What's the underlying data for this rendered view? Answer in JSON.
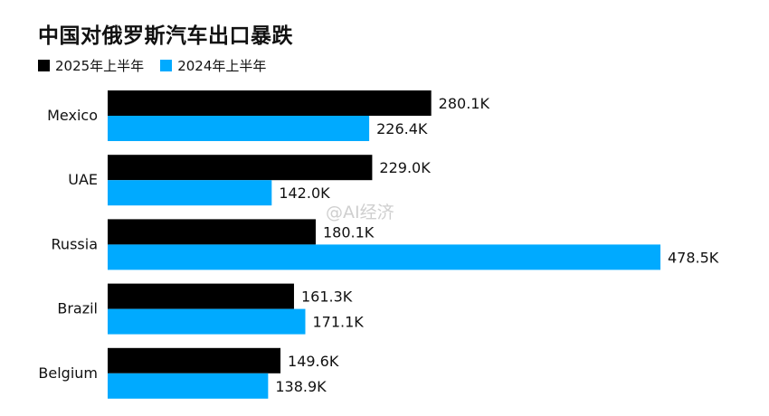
{
  "chart_data": {
    "type": "bar",
    "orientation": "horizontal",
    "title": "中国对俄罗斯汽车出口暴跌",
    "categories": [
      "Mexico",
      "UAE",
      "Russia",
      "Brazil",
      "Belgium"
    ],
    "series": [
      {
        "name": "2025年上半年",
        "color": "#000000",
        "values": [
          280.1,
          229.0,
          180.1,
          161.3,
          149.6
        ],
        "labels": [
          "280.1K",
          "229.0K",
          "180.1K",
          "161.3K",
          "149.6K"
        ]
      },
      {
        "name": "2024年上半年",
        "color": "#00aaff",
        "values": [
          226.4,
          142.0,
          478.5,
          171.1,
          138.9
        ],
        "labels": [
          "226.4K",
          "142.0K",
          "478.5K",
          "171.1K",
          "138.9K"
        ]
      }
    ],
    "legend_position": "top-left",
    "grid": false
  },
  "watermark": "@AI经济"
}
